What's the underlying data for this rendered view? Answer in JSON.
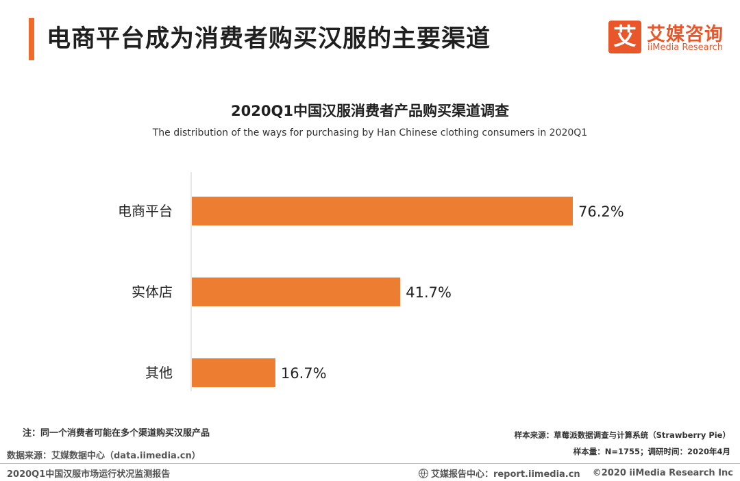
{
  "header": {
    "title": "电商平台成为消费者购买汉服的主要渠道",
    "logo_cn": "艾媒咨询",
    "logo_en": "iiMedia Research",
    "logo_mark": "艾"
  },
  "chart_data": {
    "type": "bar",
    "orientation": "horizontal",
    "title": "2020Q1中国汉服消费者产品购买渠道调查",
    "subtitle": "The distribution of the ways for purchasing by Han Chinese clothing consumers in 2020Q1",
    "categories": [
      "电商平台",
      "实体店",
      "其他"
    ],
    "values": [
      76.2,
      41.7,
      16.7
    ],
    "value_labels": [
      "76.2%",
      "41.7%",
      "16.7%"
    ],
    "unit": "%",
    "xlim": [
      0,
      76.2
    ],
    "color": "#ed7d31",
    "grid": false,
    "legend": "none"
  },
  "footer": {
    "note": "注：同一个消费者可能在多个渠道购买汉服产品",
    "sample_source": "样本来源：草莓派数据调查与计算系统（Strawberry Pie）",
    "sample_size": "样本量：N=1755；调研时间：2020年4月",
    "data_source": "数据来源：艾媒数据中心（data.iimedia.cn）",
    "report_name": "2020Q1中国汉服市场运行状况监测报告",
    "report_center": "艾媒报告中心：report.iimedia.cn",
    "copyright": "©2020  iiMedia Research  Inc"
  }
}
